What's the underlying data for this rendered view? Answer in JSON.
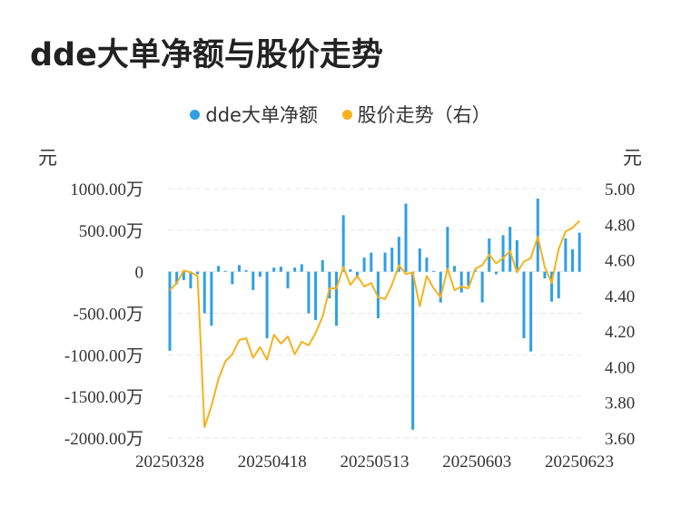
{
  "title": "dde大单净额与股价走势",
  "colors": {
    "bar": "#2f9fe6",
    "line": "#f5b21d",
    "grid": "#e6e6e6"
  },
  "legend": {
    "bar_label": "dde大单净额",
    "line_label": "股价走势（右）"
  },
  "units": {
    "left": "元",
    "right": "元"
  },
  "chart_data": {
    "type": "bar",
    "title": "dde大单净额与股价走势",
    "x_tick_labels": [
      "20250328",
      "20250418",
      "20250513",
      "20250603",
      "20250623"
    ],
    "left_axis": {
      "ticks": [
        "1000.00万",
        "500.00万",
        "0",
        "-500.00万",
        "-1000.00万",
        "-1500.00万",
        "-2000.00万"
      ],
      "ylim": [
        -2000,
        1000
      ],
      "unit": "万元"
    },
    "right_axis": {
      "ticks": [
        "5.00",
        "4.80",
        "4.60",
        "4.40",
        "4.20",
        "4.00",
        "3.80",
        "3.60"
      ],
      "ylim": [
        3.6,
        5.0
      ]
    },
    "grid": true,
    "legend_position": "top",
    "series": [
      {
        "name": "dde大单净额",
        "type": "bar",
        "axis": "left",
        "values": [
          -950,
          -150,
          -100,
          -200,
          -30,
          -500,
          -650,
          70,
          10,
          -150,
          80,
          20,
          -220,
          -60,
          -800,
          50,
          60,
          -200,
          50,
          90,
          -500,
          -580,
          140,
          -320,
          -650,
          680,
          30,
          -80,
          170,
          230,
          -560,
          230,
          290,
          420,
          820,
          -1900,
          280,
          170,
          10,
          -370,
          540,
          70,
          -250,
          -170,
          20,
          -370,
          400,
          -30,
          440,
          540,
          380,
          -800,
          -960,
          880,
          -80,
          -360,
          -320,
          400,
          270,
          470
        ]
      },
      {
        "name": "股价走势（右）",
        "type": "line",
        "axis": "right",
        "values": [
          4.43,
          4.47,
          4.54,
          4.53,
          4.51,
          3.66,
          3.78,
          3.93,
          4.03,
          4.07,
          4.15,
          4.16,
          4.05,
          4.11,
          4.04,
          4.18,
          4.13,
          4.17,
          4.07,
          4.14,
          4.12,
          4.19,
          4.28,
          4.44,
          4.44,
          4.56,
          4.46,
          4.51,
          4.45,
          4.47,
          4.39,
          4.38,
          4.46,
          4.57,
          4.52,
          4.53,
          4.34,
          4.51,
          4.44,
          4.39,
          4.55,
          4.43,
          4.45,
          4.44,
          4.55,
          4.57,
          4.63,
          4.58,
          4.61,
          4.65,
          4.53,
          4.59,
          4.61,
          4.73,
          4.56,
          4.47,
          4.66,
          4.76,
          4.78,
          4.82
        ]
      }
    ]
  }
}
